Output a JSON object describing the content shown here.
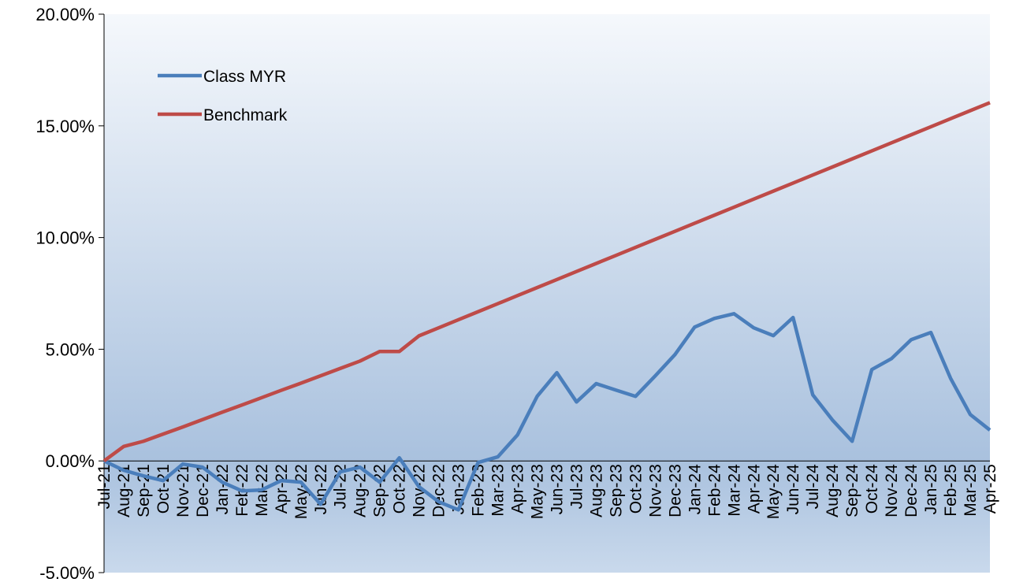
{
  "chart_data": {
    "type": "line",
    "categories": [
      "Jul-21",
      "Aug-21",
      "Sep-21",
      "Oct-21",
      "Nov-21",
      "Dec-21",
      "Jan-22",
      "Feb-22",
      "Mar-22",
      "Apr-22",
      "May-22",
      "Jun-22",
      "Jul-22",
      "Aug-22",
      "Sep-22",
      "Oct-22",
      "Nov-22",
      "Dec-22",
      "Jan-23",
      "Feb-23",
      "Mar-23",
      "Apr-23",
      "May-23",
      "Jun-23",
      "Jul-23",
      "Aug-23",
      "Sep-23",
      "Oct-23",
      "Nov-23",
      "Dec-23",
      "Jan-24",
      "Feb-24",
      "Mar-24",
      "Apr-24",
      "May-24",
      "Jun-24",
      "Jul-24",
      "Aug-24",
      "Sep-24",
      "Oct-24",
      "Nov-24",
      "Dec-24",
      "Jan-25",
      "Feb-25",
      "Mar-25",
      "Apr-25"
    ],
    "series": [
      {
        "name": "Class MYR",
        "color": "#4a7ebb",
        "values": [
          0,
          -0.42,
          -0.67,
          -0.88,
          -0.14,
          -0.28,
          -0.95,
          -1.34,
          -1.3,
          -0.88,
          -0.95,
          -1.94,
          -0.49,
          -0.28,
          -0.95,
          0.14,
          -1.16,
          -1.83,
          -2.19,
          -0.07,
          0.18,
          1.16,
          2.89,
          3.95,
          2.64,
          3.46,
          3.17,
          2.89,
          3.81,
          4.76,
          5.99,
          6.38,
          6.59,
          5.96,
          5.61,
          6.42,
          2.96,
          1.83,
          0.88,
          4.09,
          4.58,
          5.43,
          5.75,
          3.7,
          2.08,
          1.38
        ]
      },
      {
        "name": "Benchmark",
        "color": "#be4b48",
        "values": [
          0,
          0.65,
          0.88,
          1.2,
          1.52,
          1.85,
          2.18,
          2.5,
          2.83,
          3.16,
          3.48,
          3.81,
          4.14,
          4.47,
          4.9,
          4.9,
          5.6,
          5.96,
          6.32,
          6.68,
          7.04,
          7.4,
          7.76,
          8.12,
          8.48,
          8.84,
          9.2,
          9.56,
          9.92,
          10.28,
          10.64,
          11.0,
          11.36,
          11.72,
          12.08,
          12.44,
          12.8,
          13.16,
          13.52,
          13.88,
          14.24,
          14.6,
          14.96,
          15.32,
          15.68,
          16.04
        ]
      }
    ],
    "ylim": [
      -5,
      20
    ],
    "yticks": [
      {
        "value": -5,
        "label": "-5.00%"
      },
      {
        "value": 0,
        "label": "0.00%"
      },
      {
        "value": 5,
        "label": "5.00%"
      },
      {
        "value": 10,
        "label": "10.00%"
      },
      {
        "value": 15,
        "label": "15.00%"
      },
      {
        "value": 20,
        "label": "20.00%"
      }
    ],
    "legend": "upper left"
  }
}
